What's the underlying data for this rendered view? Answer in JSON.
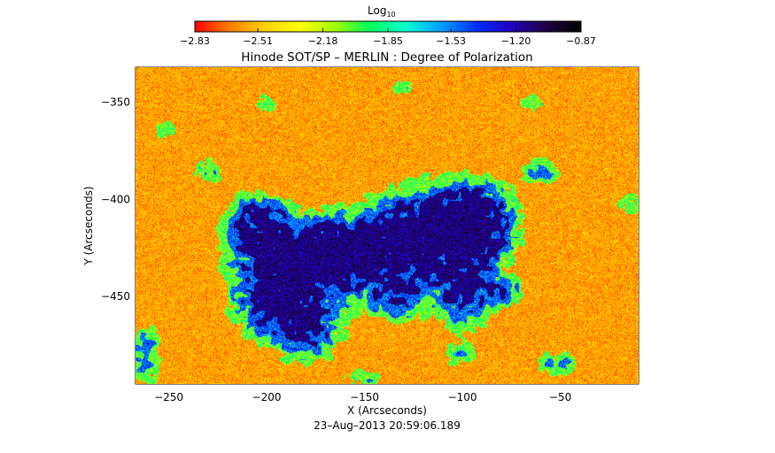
{
  "chart_data": {
    "type": "heatmap",
    "title": "Hinode SOT/SP – MERLIN : Degree of Polarization",
    "xlabel": "X (Arcseconds)",
    "ylabel": "Y (Arcseconds)",
    "timestamp": "23–Aug–2013 20:59:06.189",
    "xlim": [
      -267,
      -10
    ],
    "ylim": [
      -495,
      -332
    ],
    "x_ticks": [
      -250,
      -200,
      -150,
      -100,
      -50
    ],
    "y_ticks": [
      -350,
      -400,
      -450
    ],
    "x_tick_labels": [
      "−250",
      "−200",
      "−150",
      "−100",
      "−50"
    ],
    "y_tick_labels": [
      "−350",
      "−400",
      "−450"
    ],
    "colorbar": {
      "label": "Log",
      "label_sub": "10",
      "range": [
        -2.83,
        -0.87
      ],
      "ticks": [
        -2.83,
        -2.51,
        -2.18,
        -1.85,
        -1.53,
        -1.2,
        -0.87
      ],
      "tick_labels": [
        "−2.83",
        "−2.51",
        "−2.18",
        "−1.85",
        "−1.53",
        "−1.20",
        "−0.87"
      ],
      "colors": [
        "#ff0000",
        "#ff8000",
        "#ffd200",
        "#ffff00",
        "#a0ff00",
        "#00ff60",
        "#00ffd0",
        "#00a0ff",
        "#0030ff",
        "#2000c0",
        "#200040",
        "#000000"
      ]
    },
    "regions": [
      {
        "x": -178,
        "y": -432,
        "sx": 24,
        "sy": 14,
        "a": 1.9
      },
      {
        "x": -195,
        "y": -455,
        "sx": 14,
        "sy": 12,
        "a": 1.5
      },
      {
        "x": -205,
        "y": -412,
        "sx": 11,
        "sy": 11,
        "a": 1.3
      },
      {
        "x": -160,
        "y": -425,
        "sx": 13,
        "sy": 9,
        "a": 1.2
      },
      {
        "x": -178,
        "y": -470,
        "sx": 12,
        "sy": 10,
        "a": 1.0
      },
      {
        "x": -118,
        "y": -418,
        "sx": 22,
        "sy": 16,
        "a": 2.0
      },
      {
        "x": -92,
        "y": -412,
        "sx": 12,
        "sy": 14,
        "a": 1.5
      },
      {
        "x": -98,
        "y": -450,
        "sx": 10,
        "sy": 12,
        "a": 1.2
      },
      {
        "x": -132,
        "y": -450,
        "sx": 11,
        "sy": 9,
        "a": 1.0
      },
      {
        "x": -78,
        "y": -447,
        "sx": 6,
        "sy": 5,
        "a": 1.0
      },
      {
        "x": -262,
        "y": -480,
        "sx": 6,
        "sy": 12,
        "a": 0.9
      },
      {
        "x": -60,
        "y": -385,
        "sx": 7,
        "sy": 5,
        "a": 0.9
      },
      {
        "x": -52,
        "y": -484,
        "sx": 8,
        "sy": 5,
        "a": 0.8
      },
      {
        "x": -102,
        "y": -480,
        "sx": 6,
        "sy": 5,
        "a": 0.7
      },
      {
        "x": -15,
        "y": -402,
        "sx": 5,
        "sy": 5,
        "a": 0.7
      },
      {
        "x": -230,
        "y": -385,
        "sx": 6,
        "sy": 5,
        "a": 0.7
      },
      {
        "x": -65,
        "y": -350,
        "sx": 5,
        "sy": 4,
        "a": 0.6
      },
      {
        "x": -130,
        "y": -342,
        "sx": 5,
        "sy": 4,
        "a": 0.6
      },
      {
        "x": -200,
        "y": -350,
        "sx": 5,
        "sy": 4,
        "a": 0.6
      },
      {
        "x": -252,
        "y": -364,
        "sx": 5,
        "sy": 4,
        "a": 0.6
      },
      {
        "x": -150,
        "y": -492,
        "sx": 8,
        "sy": 4,
        "a": 0.7
      }
    ]
  }
}
